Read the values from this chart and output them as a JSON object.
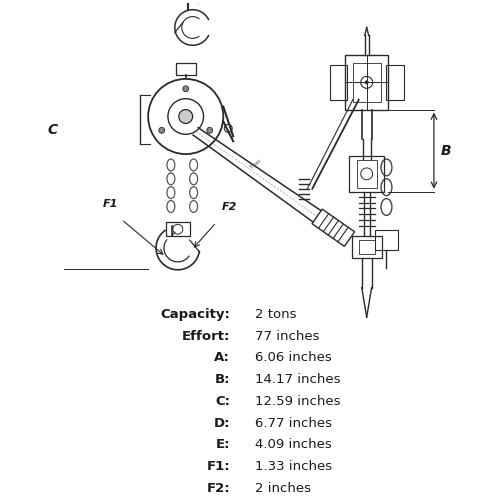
{
  "specs": [
    {
      "label": "Capacity:",
      "value": "2 tons"
    },
    {
      "label": "Effort:",
      "value": "77 inches"
    },
    {
      "label": "A:",
      "value": "6.06 inches"
    },
    {
      "label": "B:",
      "value": "14.17 inches"
    },
    {
      "label": "C:",
      "value": "12.59 inches"
    },
    {
      "label": "D:",
      "value": "6.77 inches"
    },
    {
      "label": "E:",
      "value": "4.09 inches"
    },
    {
      "label": "F1:",
      "value": "1.33 inches"
    },
    {
      "label": "F2:",
      "value": "2 inches"
    }
  ],
  "background_color": "#ffffff",
  "text_color": "#1a1a1a",
  "line_color": "#2a2a2a",
  "label_fontsize": 9.5,
  "value_fontsize": 9.5
}
